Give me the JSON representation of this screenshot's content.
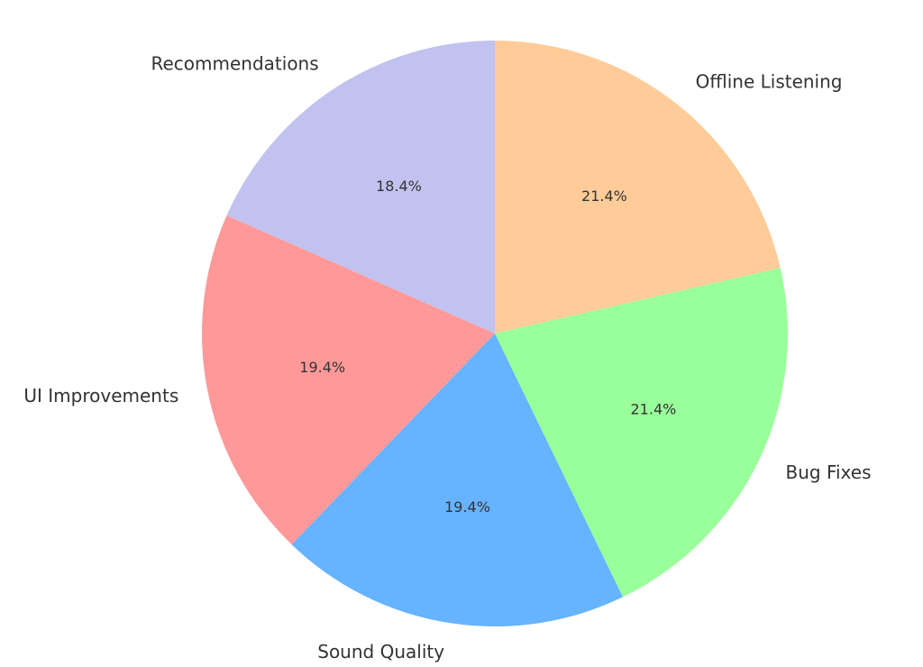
{
  "chart_data": {
    "type": "pie",
    "title": "",
    "start_angle_deg": 90,
    "direction": "counterclockwise",
    "slices": [
      {
        "label": "Recommendations",
        "value": 18.4,
        "pct_label": "18.4%",
        "color": "#c2c2f0"
      },
      {
        "label": "UI Improvements",
        "value": 19.4,
        "pct_label": "19.4%",
        "color": "#ff9999"
      },
      {
        "label": "Sound Quality",
        "value": 19.4,
        "pct_label": "19.4%",
        "color": "#66b3ff"
      },
      {
        "label": "Bug Fixes",
        "value": 21.4,
        "pct_label": "21.4%",
        "color": "#99ff99"
      },
      {
        "label": "Offline Listening",
        "value": 21.4,
        "pct_label": "21.4%",
        "color": "#ffcc99"
      }
    ]
  }
}
